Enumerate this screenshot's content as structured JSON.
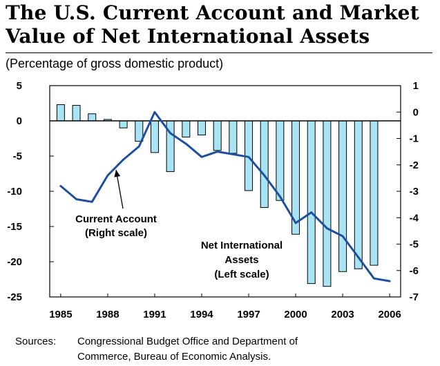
{
  "header": {
    "title_line1": "The U.S. Current Account and Market",
    "title_line2": "Value of Net International Assets",
    "subtitle": "(Percentage of gross domestic product)"
  },
  "sources": {
    "label": "Sources:",
    "line1": "Congressional Budget Office and Department of",
    "line2": "Commerce, Bureau of Economic Analysis."
  },
  "colors": {
    "bar_fill": "#a9e4f5",
    "bar_stroke": "#000000",
    "line": "#1e4f9e"
  },
  "chart_data": {
    "type": "bar+line",
    "title": "The U.S. Current Account and Market Value of Net International Assets",
    "subtitle": "(Percentage of gross domestic product)",
    "x_tick_labels": [
      "1985",
      "1988",
      "1991",
      "1994",
      "1997",
      "2000",
      "2003",
      "2006"
    ],
    "left_axis": {
      "ylim": [
        -25,
        5
      ],
      "tick_labels": [
        "5",
        "0",
        "-5",
        "-10",
        "-15",
        "-20",
        "-25"
      ]
    },
    "right_axis": {
      "ylim": [
        -7,
        1
      ],
      "tick_labels": [
        "1",
        "0",
        "-1",
        "-2",
        "-3",
        "-4",
        "-5",
        "-6",
        "-7"
      ]
    },
    "series": [
      {
        "name": "Net International Assets",
        "axis": "left",
        "type": "bar",
        "x": [
          1985,
          1986,
          1987,
          1988,
          1989,
          1990,
          1991,
          1992,
          1993,
          1994,
          1995,
          1996,
          1997,
          1998,
          1999,
          2000,
          2001,
          2002,
          2003,
          2004,
          2005
        ],
        "values": [
          2.3,
          2.2,
          1.0,
          0.2,
          -1.0,
          -2.9,
          -4.5,
          -7.2,
          -2.3,
          -2.0,
          -4.2,
          -4.6,
          -9.9,
          -12.3,
          -11.3,
          -16.1,
          -23.1,
          -23.5,
          -21.4,
          -21.0,
          -20.5
        ]
      },
      {
        "name": "Current Account",
        "axis": "right",
        "type": "line",
        "x": [
          1985,
          1986,
          1987,
          1988,
          1989,
          1990,
          1991,
          1992,
          1993,
          1994,
          1995,
          1996,
          1997,
          1998,
          1999,
          2000,
          2001,
          2002,
          2003,
          2004,
          2005,
          2006
        ],
        "values": [
          -2.8,
          -3.3,
          -3.4,
          -2.4,
          -1.8,
          -1.3,
          0.0,
          -0.8,
          -1.2,
          -1.7,
          -1.5,
          -1.6,
          -1.7,
          -2.4,
          -3.2,
          -4.2,
          -3.8,
          -4.4,
          -4.7,
          -5.5,
          -6.3,
          -6.4
        ]
      }
    ],
    "annotations": [
      {
        "lines": [
          "Current Account",
          "(Right scale)"
        ],
        "series": "Current Account",
        "arrow": true
      },
      {
        "lines": [
          "Net International",
          "Assets",
          "(Left scale)"
        ],
        "series": "Net International Assets",
        "arrow": false
      }
    ],
    "zero_line": true
  }
}
